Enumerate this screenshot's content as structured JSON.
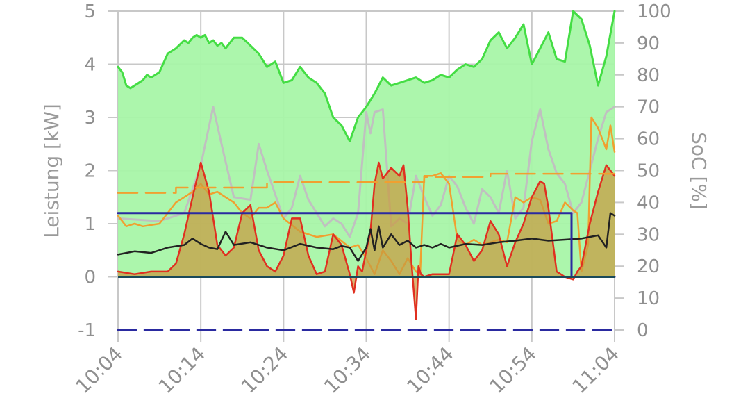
{
  "chart_data": {
    "type": "line",
    "xlabel": "",
    "ylabel": "Leistung [kW]",
    "ylabel_right": "SoC [%]",
    "x_ticks": [
      "10:04",
      "10:14",
      "10:24",
      "10:34",
      "10:44",
      "10:54",
      "11:04"
    ],
    "y_ticks": [
      "-1",
      "0",
      "1",
      "2",
      "3",
      "4",
      "5"
    ],
    "y_right_ticks": [
      "0",
      "10",
      "20",
      "30",
      "40",
      "50",
      "60",
      "70",
      "80",
      "90",
      "100"
    ],
    "ylim": [
      -1,
      5
    ],
    "ylim_right": [
      0,
      100
    ],
    "xlim_minutes": [
      0,
      60
    ],
    "grid": true,
    "colors": {
      "grid": "#c8c8c8",
      "pv_line": "#44dd44",
      "pv_fill": "#a8f5a8",
      "red_line": "#e03020",
      "red_fill": "#c89a40",
      "orange_line": "#f0a030",
      "orange_dashed": "#f0a030",
      "black_line": "#222222",
      "gray_line": "#c0c0c0",
      "blue_line": "#2a2aa0",
      "baseline": "#1a4a5a"
    },
    "series": [
      {
        "style": "green-area",
        "axis": "left",
        "x": [
          0,
          0.5,
          1,
          1.5,
          2,
          2.5,
          3,
          3.5,
          4,
          5,
          6,
          7,
          8,
          8.5,
          9,
          9.5,
          10,
          10.5,
          11,
          11.5,
          12,
          12.5,
          13,
          14,
          15,
          16,
          17,
          18,
          19,
          20,
          21,
          22,
          23,
          24,
          25,
          26,
          27,
          28,
          29,
          30,
          31,
          32,
          33,
          34,
          35,
          36,
          37,
          38,
          39,
          40,
          41,
          42,
          43,
          44,
          45,
          46,
          47,
          48,
          49,
          50,
          51,
          52,
          53,
          54,
          55,
          56,
          57,
          58,
          59,
          60
        ],
        "values": [
          3.95,
          3.85,
          3.6,
          3.55,
          3.6,
          3.65,
          3.7,
          3.8,
          3.75,
          3.85,
          4.2,
          4.3,
          4.45,
          4.4,
          4.5,
          4.55,
          4.5,
          4.55,
          4.4,
          4.45,
          4.35,
          4.4,
          4.3,
          4.5,
          4.5,
          4.35,
          4.2,
          3.95,
          4.05,
          3.65,
          3.7,
          3.95,
          3.75,
          3.65,
          3.45,
          3.0,
          2.85,
          2.55,
          3.0,
          3.2,
          3.45,
          3.75,
          3.6,
          3.65,
          3.7,
          3.75,
          3.65,
          3.7,
          3.8,
          3.75,
          3.9,
          4.0,
          3.95,
          4.1,
          4.45,
          4.6,
          4.3,
          4.5,
          4.75,
          4.0,
          4.3,
          4.6,
          4.1,
          4.05,
          5.0,
          4.85,
          4.35,
          3.6,
          4.15,
          5.0
        ]
      },
      {
        "style": "gray-line",
        "axis": "left",
        "x": [
          0,
          5,
          8,
          10,
          11.5,
          12.5,
          14,
          16,
          17,
          18,
          20,
          21,
          22,
          23,
          25,
          26,
          27,
          28,
          29,
          30,
          30.5,
          31,
          32,
          33,
          34,
          35,
          36,
          37,
          38,
          39,
          40,
          41,
          42,
          43,
          44,
          45,
          46,
          47,
          48,
          49,
          50,
          51,
          52,
          53,
          54,
          55,
          56,
          57,
          58,
          59,
          60
        ],
        "values": [
          1.1,
          1.05,
          1.2,
          2.1,
          3.2,
          2.5,
          1.5,
          1.45,
          2.5,
          2.0,
          1.1,
          1.3,
          1.9,
          1.45,
          0.95,
          1.1,
          1.0,
          0.75,
          1.2,
          3.1,
          2.7,
          3.1,
          3.15,
          0.95,
          1.1,
          1.0,
          1.9,
          1.5,
          1.15,
          1.35,
          1.9,
          1.7,
          1.3,
          1.0,
          1.65,
          1.5,
          1.2,
          2.0,
          1.1,
          1.3,
          2.55,
          3.15,
          2.4,
          1.95,
          1.75,
          1.2,
          1.4,
          2.0,
          2.6,
          3.1,
          3.2
        ]
      },
      {
        "style": "orange-line",
        "axis": "left",
        "x": [
          0,
          1,
          2,
          3,
          5,
          7,
          8,
          9,
          10,
          11,
          12,
          13,
          14,
          15,
          16,
          17,
          18,
          19,
          20,
          22,
          24,
          26,
          28,
          29,
          30,
          31,
          32,
          33,
          34,
          35,
          36,
          36.5,
          37,
          38,
          39,
          40,
          41,
          42,
          43,
          44,
          45,
          46,
          47,
          48,
          49,
          50,
          51,
          52,
          53,
          54,
          55,
          55.5,
          56,
          56.8,
          57.2,
          58,
          59,
          59.5,
          60
        ],
        "values": [
          1.15,
          0.95,
          1.0,
          0.95,
          1.0,
          1.4,
          1.5,
          1.6,
          1.75,
          1.55,
          1.6,
          1.5,
          1.4,
          1.2,
          1.1,
          1.3,
          1.3,
          1.4,
          1.1,
          0.85,
          0.75,
          0.8,
          0.55,
          0.6,
          0.35,
          0.05,
          0.5,
          0.3,
          0.05,
          0.35,
          0.1,
          0.05,
          1.9,
          1.9,
          1.95,
          1.75,
          0.7,
          0.6,
          0.7,
          0.6,
          0.65,
          0.7,
          0.65,
          1.5,
          1.4,
          1.5,
          1.45,
          1.0,
          1.05,
          1.4,
          1.25,
          1.2,
          0.1,
          0.6,
          3.0,
          2.8,
          2.4,
          2.85,
          2.35
        ]
      },
      {
        "style": "red-area",
        "axis": "left",
        "x": [
          0,
          2,
          4,
          6,
          7,
          8,
          9,
          10,
          11,
          12,
          13,
          14,
          15,
          16,
          17,
          18,
          19,
          20,
          21,
          22,
          23,
          24,
          25,
          26,
          27,
          28,
          28.5,
          29,
          29.5,
          30,
          30.5,
          31,
          31.5,
          32,
          33,
          34,
          34.5,
          35,
          35.5,
          36,
          36.3,
          36.6,
          37,
          38,
          39,
          40,
          41,
          42,
          43,
          44,
          45,
          46,
          47,
          48,
          49,
          50,
          51,
          51.5,
          52,
          53,
          54,
          55,
          55.5,
          56,
          57,
          58,
          59,
          60
        ],
        "values": [
          0.1,
          0.05,
          0.1,
          0.1,
          0.25,
          0.8,
          1.5,
          2.15,
          1.6,
          0.6,
          0.4,
          0.55,
          1.2,
          1.35,
          0.5,
          0.2,
          0.1,
          0.4,
          1.1,
          1.1,
          0.4,
          0.05,
          0.1,
          0.8,
          0.6,
          0.05,
          -0.3,
          0.2,
          0.1,
          0.5,
          0.85,
          1.75,
          2.15,
          1.85,
          2.05,
          1.9,
          2.1,
          1.3,
          0.2,
          -0.8,
          0.2,
          0.05,
          0.0,
          0.05,
          0.05,
          0.05,
          0.8,
          0.6,
          0.3,
          0.5,
          1.05,
          0.8,
          0.2,
          0.65,
          1.0,
          1.5,
          1.8,
          1.75,
          1.3,
          0.1,
          0.0,
          -0.05,
          0.1,
          0.2,
          1.0,
          1.6,
          2.1,
          1.9
        ]
      },
      {
        "style": "black-line",
        "axis": "left",
        "x": [
          0,
          2,
          4,
          6,
          8,
          9,
          10,
          11,
          12,
          13,
          14,
          16,
          18,
          20,
          22,
          24,
          26,
          27,
          28,
          29,
          30,
          30.5,
          31,
          31.5,
          32,
          33,
          34,
          35,
          36,
          37,
          38,
          39,
          40,
          42,
          44,
          46,
          48,
          50,
          52,
          54,
          56,
          58,
          59,
          59.5,
          60
        ],
        "values": [
          0.42,
          0.48,
          0.45,
          0.55,
          0.6,
          0.72,
          0.62,
          0.55,
          0.52,
          0.85,
          0.6,
          0.65,
          0.55,
          0.5,
          0.62,
          0.55,
          0.52,
          0.58,
          0.55,
          0.3,
          0.55,
          0.9,
          0.5,
          0.95,
          0.55,
          0.8,
          0.6,
          0.68,
          0.55,
          0.6,
          0.55,
          0.62,
          0.55,
          0.62,
          0.6,
          0.65,
          0.68,
          0.72,
          0.68,
          0.7,
          0.72,
          0.78,
          0.55,
          1.2,
          1.15
        ]
      },
      {
        "style": "blue-line",
        "axis": "left",
        "x": [
          0,
          54.8,
          54.8,
          60
        ],
        "values": [
          1.2,
          1.2,
          0.0,
          0.0
        ]
      },
      {
        "style": "orange-dashed",
        "axis": "left",
        "x": [
          0,
          7,
          7,
          18,
          18,
          37,
          37,
          45,
          45,
          60
        ],
        "values": [
          1.58,
          1.58,
          1.68,
          1.68,
          1.78,
          1.78,
          1.88,
          1.88,
          1.94,
          1.94
        ]
      },
      {
        "style": "navy-dashed",
        "axis": "left",
        "x": [
          0,
          60
        ],
        "values": [
          -1,
          -1
        ]
      }
    ]
  }
}
